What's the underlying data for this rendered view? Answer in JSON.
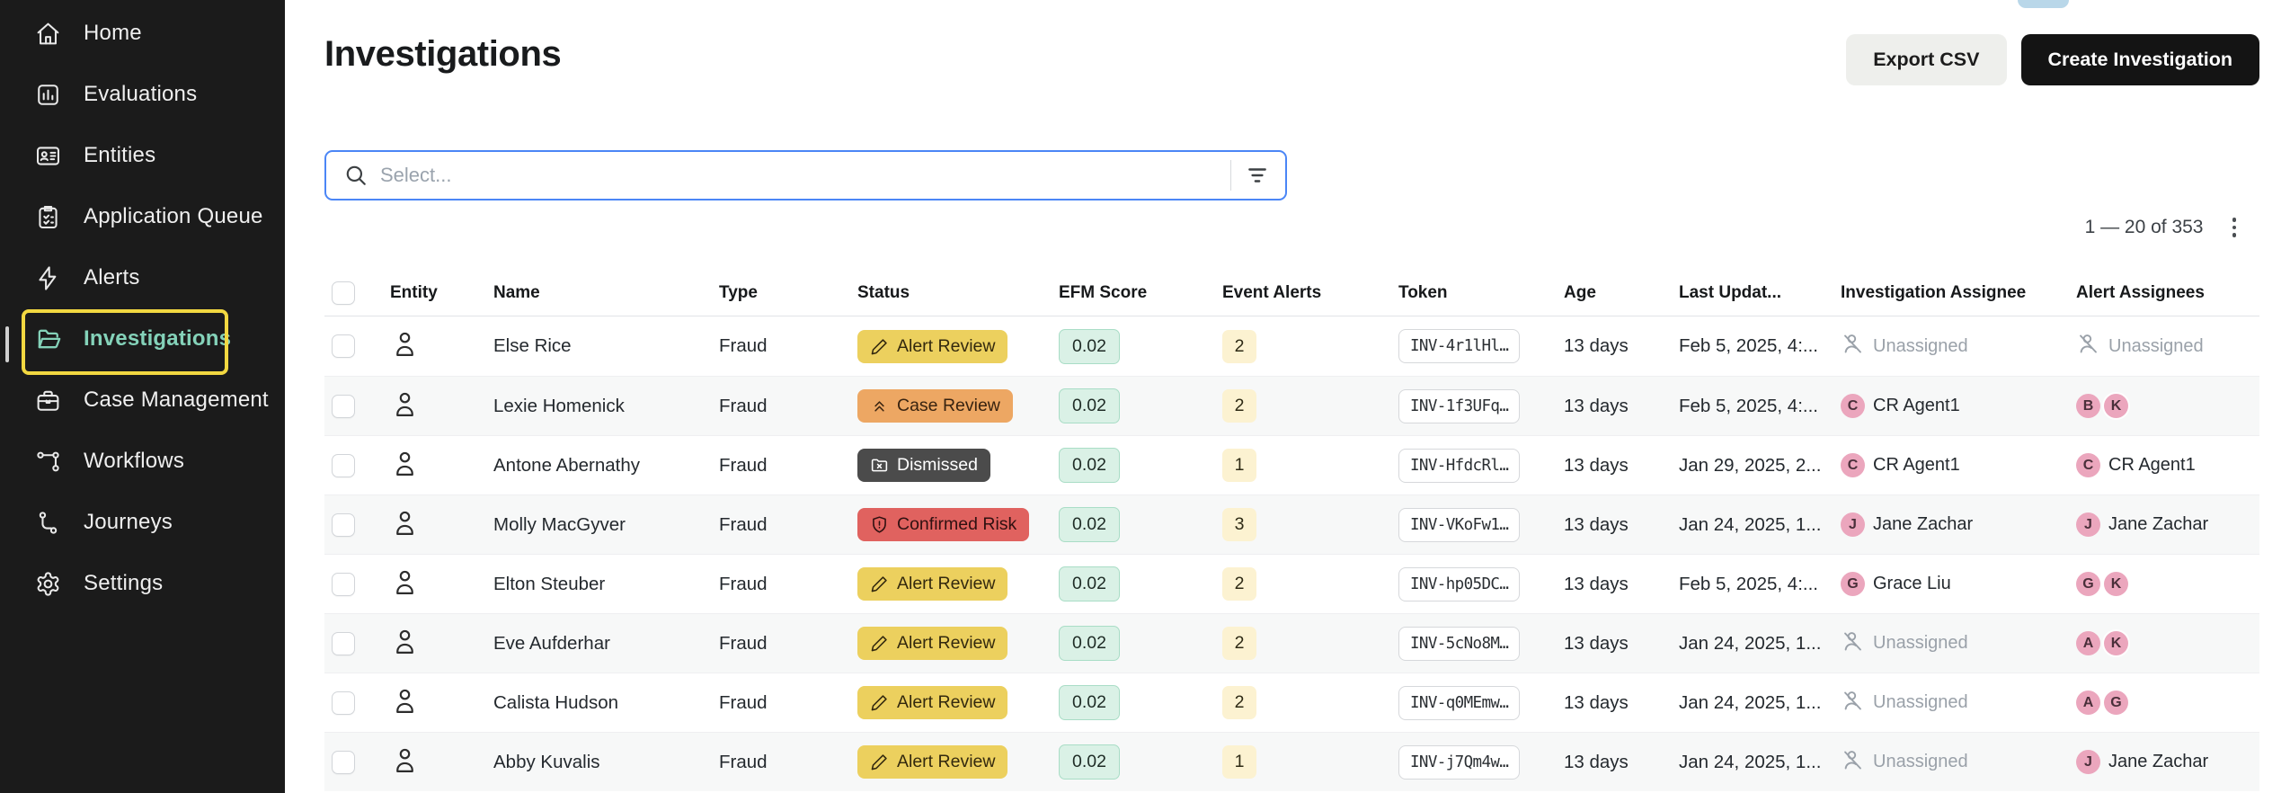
{
  "sidebar": {
    "items": [
      {
        "label": "Home",
        "icon": "home-icon",
        "active": false
      },
      {
        "label": "Evaluations",
        "icon": "evaluations-icon",
        "active": false
      },
      {
        "label": "Entities",
        "icon": "entities-icon",
        "active": false
      },
      {
        "label": "Application Queue",
        "icon": "application-queue-icon",
        "active": false
      },
      {
        "label": "Alerts",
        "icon": "alerts-icon",
        "active": false
      },
      {
        "label": "Investigations",
        "icon": "investigations-icon",
        "active": true
      },
      {
        "label": "Case Management",
        "icon": "case-management-icon",
        "active": false
      },
      {
        "label": "Workflows",
        "icon": "workflows-icon",
        "active": false
      },
      {
        "label": "Journeys",
        "icon": "journeys-icon",
        "active": false
      },
      {
        "label": "Settings",
        "icon": "settings-icon",
        "active": false
      }
    ]
  },
  "header": {
    "title": "Investigations",
    "export_button": "Export CSV",
    "create_button": "Create Investigation"
  },
  "search": {
    "placeholder": "Select..."
  },
  "pagination": {
    "range_text": "1 — 20 of 353"
  },
  "table": {
    "columns": [
      "Entity",
      "Name",
      "Type",
      "Status",
      "EFM Score",
      "Event Alerts",
      "Token",
      "Age",
      "Last Updat...",
      "Investigation Assignee",
      "Alert Assignees"
    ],
    "rows": [
      {
        "name": "Else Rice",
        "type": "Fraud",
        "status": {
          "label": "Alert Review",
          "variant": "alert-review"
        },
        "efm_score": "0.02",
        "event_alerts": "2",
        "token": "INV-4r1lHl…",
        "age": "13 days",
        "last_updated": "Feb 5, 2025, 4:...",
        "investigation_assignee": {
          "kind": "unassigned",
          "label": "Unassigned"
        },
        "alert_assignees": {
          "kind": "unassigned",
          "label": "Unassigned"
        }
      },
      {
        "name": "Lexie Homenick",
        "type": "Fraud",
        "status": {
          "label": "Case Review",
          "variant": "case-review"
        },
        "efm_score": "0.02",
        "event_alerts": "2",
        "token": "INV-1f3UFq…",
        "age": "13 days",
        "last_updated": "Feb 5, 2025, 4:...",
        "investigation_assignee": {
          "kind": "user",
          "initial": "C",
          "label": "CR Agent1"
        },
        "alert_assignees": {
          "kind": "avatars",
          "initials": [
            "B",
            "K"
          ]
        }
      },
      {
        "name": "Antone Abernathy",
        "type": "Fraud",
        "status": {
          "label": "Dismissed",
          "variant": "dismissed"
        },
        "efm_score": "0.02",
        "event_alerts": "1",
        "token": "INV-HfdcRl…",
        "age": "13 days",
        "last_updated": "Jan 29, 2025, 2...",
        "investigation_assignee": {
          "kind": "user",
          "initial": "C",
          "label": "CR Agent1"
        },
        "alert_assignees": {
          "kind": "user",
          "initial": "C",
          "label": "CR Agent1"
        }
      },
      {
        "name": "Molly MacGyver",
        "type": "Fraud",
        "status": {
          "label": "Confirmed Risk",
          "variant": "confirmed-risk"
        },
        "efm_score": "0.02",
        "event_alerts": "3",
        "token": "INV-VKoFw1…",
        "age": "13 days",
        "last_updated": "Jan 24, 2025, 1...",
        "investigation_assignee": {
          "kind": "user",
          "initial": "J",
          "label": "Jane Zachar"
        },
        "alert_assignees": {
          "kind": "user",
          "initial": "J",
          "label": "Jane Zachar"
        }
      },
      {
        "name": "Elton Steuber",
        "type": "Fraud",
        "status": {
          "label": "Alert Review",
          "variant": "alert-review"
        },
        "efm_score": "0.02",
        "event_alerts": "2",
        "token": "INV-hp05DC…",
        "age": "13 days",
        "last_updated": "Feb 5, 2025, 4:...",
        "investigation_assignee": {
          "kind": "user",
          "initial": "G",
          "label": "Grace Liu"
        },
        "alert_assignees": {
          "kind": "avatars",
          "initials": [
            "G",
            "K"
          ]
        }
      },
      {
        "name": "Eve Aufderhar",
        "type": "Fraud",
        "status": {
          "label": "Alert Review",
          "variant": "alert-review"
        },
        "efm_score": "0.02",
        "event_alerts": "2",
        "token": "INV-5cNo8M…",
        "age": "13 days",
        "last_updated": "Jan 24, 2025, 1...",
        "investigation_assignee": {
          "kind": "unassigned",
          "label": "Unassigned"
        },
        "alert_assignees": {
          "kind": "avatars",
          "initials": [
            "A",
            "K"
          ]
        }
      },
      {
        "name": "Calista Hudson",
        "type": "Fraud",
        "status": {
          "label": "Alert Review",
          "variant": "alert-review"
        },
        "efm_score": "0.02",
        "event_alerts": "2",
        "token": "INV-q0MEmw…",
        "age": "13 days",
        "last_updated": "Jan 24, 2025, 1...",
        "investigation_assignee": {
          "kind": "unassigned",
          "label": "Unassigned"
        },
        "alert_assignees": {
          "kind": "avatars",
          "initials": [
            "A",
            "G"
          ]
        }
      },
      {
        "name": "Abby Kuvalis",
        "type": "Fraud",
        "status": {
          "label": "Alert Review",
          "variant": "alert-review"
        },
        "efm_score": "0.02",
        "event_alerts": "1",
        "token": "INV-j7Qm4w…",
        "age": "13 days",
        "last_updated": "Jan 24, 2025, 1...",
        "investigation_assignee": {
          "kind": "unassigned",
          "label": "Unassigned"
        },
        "alert_assignees": {
          "kind": "user",
          "initial": "J",
          "label": "Jane Zachar"
        }
      }
    ]
  },
  "colors": {
    "sidebar_bg": "#1b1b1b",
    "sidebar_active_text": "#84d2b9",
    "active_highlight_border": "#f2d841",
    "search_border": "#4b86f6",
    "status": {
      "alert-review": {
        "bg": "#ecd05e",
        "fg": "#33290e"
      },
      "case-review": {
        "bg": "#eda763",
        "fg": "#382310"
      },
      "dismissed": {
        "bg": "#4b4b4b",
        "fg": "#ffffff"
      },
      "confirmed-risk": {
        "bg": "#e0625f",
        "fg": "#301111"
      }
    },
    "efm_badge": {
      "bg": "#daf1e6",
      "border": "#a9ddc6"
    },
    "event_badge": {
      "bg": "#fcf2d1"
    },
    "avatar": {
      "bg": "#eba6bd",
      "fg": "#4a2f3a"
    }
  }
}
